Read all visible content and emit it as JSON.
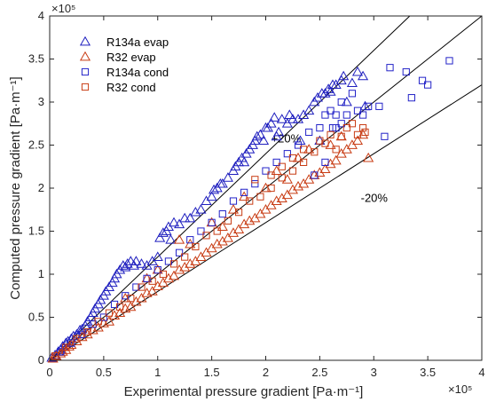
{
  "chart_data": {
    "type": "scatter",
    "xlabel": "Experimental pressure gradient [Pa·m⁻¹]",
    "ylabel": "Computed pressure gradient [Pa·m⁻¹]",
    "x_multiplier": "×10⁵",
    "y_multiplier": "×10⁵",
    "xlim": [
      0,
      4
    ],
    "ylim": [
      0,
      4
    ],
    "xticks": [
      "0",
      "0.5",
      "1",
      "1.5",
      "2",
      "2.5",
      "3",
      "3.5",
      "4"
    ],
    "yticks": [
      "0",
      "0.5",
      "1",
      "1.5",
      "2",
      "2.5",
      "3",
      "3.5",
      "4"
    ],
    "grid": false,
    "legend_position": "top-left",
    "reference_lines": [
      {
        "label": "+20%",
        "slope": 1.2
      },
      {
        "label": "",
        "slope": 1.0
      },
      {
        "label": "-20%",
        "slope": 0.8
      }
    ],
    "series": [
      {
        "name": "R134a evap",
        "marker": "triangle",
        "color": "#1f1fbf",
        "points": [
          [
            0.02,
            0.03
          ],
          [
            0.05,
            0.06
          ],
          [
            0.08,
            0.1
          ],
          [
            0.1,
            0.12
          ],
          [
            0.12,
            0.16
          ],
          [
            0.15,
            0.2
          ],
          [
            0.17,
            0.22
          ],
          [
            0.2,
            0.25
          ],
          [
            0.22,
            0.28
          ],
          [
            0.25,
            0.3
          ],
          [
            0.28,
            0.35
          ],
          [
            0.3,
            0.36
          ],
          [
            0.33,
            0.4
          ],
          [
            0.35,
            0.45
          ],
          [
            0.38,
            0.5
          ],
          [
            0.4,
            0.55
          ],
          [
            0.42,
            0.6
          ],
          [
            0.45,
            0.65
          ],
          [
            0.47,
            0.7
          ],
          [
            0.5,
            0.75
          ],
          [
            0.52,
            0.8
          ],
          [
            0.55,
            0.85
          ],
          [
            0.58,
            0.9
          ],
          [
            0.6,
            0.95
          ],
          [
            0.62,
            1.0
          ],
          [
            0.65,
            1.05
          ],
          [
            0.68,
            1.1
          ],
          [
            0.7,
            1.08
          ],
          [
            0.72,
            1.12
          ],
          [
            0.75,
            1.15
          ],
          [
            0.78,
            1.1
          ],
          [
            0.8,
            1.15
          ],
          [
            0.85,
            1.12
          ],
          [
            0.9,
            1.1
          ],
          [
            0.95,
            1.15
          ],
          [
            1.0,
            1.2
          ],
          [
            1.02,
            1.42
          ],
          [
            1.05,
            1.48
          ],
          [
            1.08,
            1.5
          ],
          [
            1.1,
            1.55
          ],
          [
            1.12,
            1.4
          ],
          [
            1.15,
            1.6
          ],
          [
            1.2,
            1.58
          ],
          [
            1.25,
            1.65
          ],
          [
            1.3,
            1.65
          ],
          [
            1.35,
            1.72
          ],
          [
            1.4,
            1.75
          ],
          [
            1.45,
            1.85
          ],
          [
            1.5,
            1.9
          ],
          [
            1.52,
            1.98
          ],
          [
            1.55,
            2.0
          ],
          [
            1.58,
            2.05
          ],
          [
            1.6,
            2.05
          ],
          [
            1.65,
            2.12
          ],
          [
            1.7,
            2.2
          ],
          [
            1.72,
            2.25
          ],
          [
            1.75,
            2.3
          ],
          [
            1.78,
            2.35
          ],
          [
            1.8,
            2.3
          ],
          [
            1.82,
            2.4
          ],
          [
            1.85,
            2.45
          ],
          [
            1.88,
            2.5
          ],
          [
            1.9,
            2.55
          ],
          [
            1.92,
            2.6
          ],
          [
            1.95,
            2.62
          ],
          [
            1.98,
            2.55
          ],
          [
            2.0,
            2.7
          ],
          [
            2.02,
            2.7
          ],
          [
            2.05,
            2.75
          ],
          [
            2.08,
            2.82
          ],
          [
            2.1,
            2.6
          ],
          [
            2.12,
            2.65
          ],
          [
            2.15,
            2.8
          ],
          [
            2.2,
            2.75
          ],
          [
            2.22,
            2.85
          ],
          [
            2.25,
            2.8
          ],
          [
            2.3,
            2.8
          ],
          [
            2.32,
            2.55
          ],
          [
            2.35,
            2.85
          ],
          [
            2.4,
            2.9
          ],
          [
            2.45,
            3.0
          ],
          [
            2.48,
            3.05
          ],
          [
            2.5,
            2.55
          ],
          [
            2.52,
            3.1
          ],
          [
            2.55,
            3.1
          ],
          [
            2.58,
            3.15
          ],
          [
            2.6,
            3.12
          ],
          [
            2.62,
            3.2
          ],
          [
            2.65,
            3.2
          ],
          [
            2.7,
            3.25
          ],
          [
            2.72,
            3.3
          ],
          [
            2.75,
            3.0
          ],
          [
            2.8,
            3.22
          ],
          [
            2.85,
            3.35
          ],
          [
            2.9,
            3.3
          ],
          [
            2.92,
            2.95
          ]
        ]
      },
      {
        "name": "R32 evap",
        "marker": "triangle",
        "color": "#c83c14",
        "points": [
          [
            0.03,
            0.02
          ],
          [
            0.06,
            0.05
          ],
          [
            0.1,
            0.08
          ],
          [
            0.12,
            0.1
          ],
          [
            0.15,
            0.12
          ],
          [
            0.18,
            0.16
          ],
          [
            0.2,
            0.18
          ],
          [
            0.25,
            0.22
          ],
          [
            0.3,
            0.27
          ],
          [
            0.35,
            0.3
          ],
          [
            0.4,
            0.35
          ],
          [
            0.45,
            0.38
          ],
          [
            0.5,
            0.43
          ],
          [
            0.55,
            0.45
          ],
          [
            0.6,
            0.52
          ],
          [
            0.65,
            0.55
          ],
          [
            0.7,
            0.6
          ],
          [
            0.75,
            0.62
          ],
          [
            0.8,
            0.68
          ],
          [
            0.85,
            0.72
          ],
          [
            0.9,
            0.78
          ],
          [
            0.95,
            0.8
          ],
          [
            1.0,
            0.86
          ],
          [
            1.05,
            0.9
          ],
          [
            1.1,
            0.95
          ],
          [
            1.15,
            0.98
          ],
          [
            1.2,
            1.05
          ],
          [
            1.25,
            1.08
          ],
          [
            1.3,
            1.12
          ],
          [
            1.35,
            1.15
          ],
          [
            1.4,
            1.2
          ],
          [
            1.45,
            1.25
          ],
          [
            1.5,
            1.3
          ],
          [
            1.55,
            1.35
          ],
          [
            1.6,
            1.38
          ],
          [
            1.65,
            1.42
          ],
          [
            1.7,
            1.48
          ],
          [
            1.75,
            1.52
          ],
          [
            1.8,
            1.58
          ],
          [
            1.85,
            1.62
          ],
          [
            1.9,
            1.65
          ],
          [
            1.95,
            1.7
          ],
          [
            2.0,
            1.75
          ],
          [
            2.05,
            1.8
          ],
          [
            2.1,
            1.85
          ],
          [
            2.15,
            1.88
          ],
          [
            2.2,
            1.92
          ],
          [
            2.25,
            1.98
          ],
          [
            2.3,
            2.02
          ],
          [
            2.35,
            2.05
          ],
          [
            2.4,
            2.1
          ],
          [
            2.45,
            2.15
          ],
          [
            2.5,
            2.18
          ],
          [
            2.55,
            2.22
          ],
          [
            2.6,
            2.28
          ],
          [
            2.65,
            2.32
          ],
          [
            2.7,
            2.4
          ],
          [
            2.75,
            2.45
          ],
          [
            2.8,
            2.5
          ],
          [
            2.85,
            2.55
          ],
          [
            2.9,
            2.62
          ],
          [
            2.95,
            2.35
          ],
          [
            1.2,
            1.4
          ],
          [
            1.5,
            1.6
          ],
          [
            1.8,
            1.9
          ],
          [
            2.1,
            2.2
          ],
          [
            2.4,
            2.45
          ],
          [
            0.7,
            0.72
          ],
          [
            0.9,
            0.95
          ],
          [
            1.6,
            1.55
          ],
          [
            2.2,
            2.1
          ],
          [
            2.6,
            2.5
          ],
          [
            1.0,
            1.05
          ],
          [
            1.3,
            1.35
          ],
          [
            1.7,
            1.75
          ],
          [
            2.0,
            2.0
          ],
          [
            2.3,
            2.35
          ],
          [
            2.7,
            2.6
          ]
        ]
      },
      {
        "name": "R134a cond",
        "marker": "square",
        "color": "#2323c8",
        "points": [
          [
            0.1,
            0.1
          ],
          [
            0.2,
            0.2
          ],
          [
            0.3,
            0.3
          ],
          [
            0.4,
            0.42
          ],
          [
            0.5,
            0.5
          ],
          [
            0.6,
            0.65
          ],
          [
            0.7,
            0.75
          ],
          [
            0.8,
            0.85
          ],
          [
            0.9,
            0.95
          ],
          [
            1.0,
            1.05
          ],
          [
            1.1,
            1.15
          ],
          [
            1.2,
            1.25
          ],
          [
            1.3,
            1.4
          ],
          [
            1.4,
            1.5
          ],
          [
            1.5,
            1.6
          ],
          [
            1.6,
            1.7
          ],
          [
            1.7,
            1.85
          ],
          [
            1.8,
            1.95
          ],
          [
            1.9,
            2.05
          ],
          [
            2.0,
            2.2
          ],
          [
            2.1,
            2.3
          ],
          [
            2.2,
            2.4
          ],
          [
            2.3,
            2.5
          ],
          [
            2.4,
            2.65
          ],
          [
            2.5,
            2.7
          ],
          [
            2.55,
            2.85
          ],
          [
            2.6,
            2.9
          ],
          [
            2.62,
            2.7
          ],
          [
            2.65,
            2.7
          ],
          [
            2.7,
            3.0
          ],
          [
            2.75,
            2.85
          ],
          [
            2.8,
            3.1
          ],
          [
            2.85,
            2.9
          ],
          [
            2.9,
            2.85
          ],
          [
            2.95,
            2.95
          ],
          [
            3.05,
            2.95
          ],
          [
            3.1,
            2.6
          ],
          [
            3.15,
            3.4
          ],
          [
            3.3,
            3.35
          ],
          [
            3.35,
            3.05
          ],
          [
            3.45,
            3.25
          ],
          [
            3.5,
            3.2
          ],
          [
            3.7,
            3.48
          ],
          [
            2.45,
            2.15
          ],
          [
            2.55,
            2.3
          ],
          [
            2.65,
            2.85
          ],
          [
            2.7,
            2.75
          ]
        ]
      },
      {
        "name": "R32 cond",
        "marker": "square",
        "color": "#c83c14",
        "points": [
          [
            0.05,
            0.05
          ],
          [
            0.15,
            0.15
          ],
          [
            0.25,
            0.25
          ],
          [
            0.35,
            0.33
          ],
          [
            0.45,
            0.45
          ],
          [
            0.55,
            0.55
          ],
          [
            0.65,
            0.62
          ],
          [
            0.75,
            0.72
          ],
          [
            0.85,
            0.85
          ],
          [
            0.95,
            0.92
          ],
          [
            1.05,
            1.0
          ],
          [
            1.15,
            1.12
          ],
          [
            1.25,
            1.2
          ],
          [
            1.35,
            1.32
          ],
          [
            1.45,
            1.45
          ],
          [
            1.55,
            1.5
          ],
          [
            1.65,
            1.62
          ],
          [
            1.75,
            1.72
          ],
          [
            1.85,
            1.85
          ],
          [
            1.95,
            1.9
          ],
          [
            2.05,
            2.0
          ],
          [
            2.15,
            2.12
          ],
          [
            2.25,
            2.2
          ],
          [
            2.35,
            2.3
          ],
          [
            2.45,
            2.42
          ],
          [
            2.55,
            2.52
          ],
          [
            2.6,
            2.62
          ],
          [
            2.65,
            2.45
          ],
          [
            2.75,
            2.7
          ],
          [
            2.8,
            2.75
          ],
          [
            2.85,
            2.62
          ],
          [
            2.9,
            2.7
          ],
          [
            2.92,
            2.65
          ],
          [
            2.05,
            2.15
          ],
          [
            2.15,
            2.25
          ],
          [
            2.25,
            2.35
          ],
          [
            2.35,
            2.45
          ],
          [
            1.9,
            2.1
          ],
          [
            2.5,
            2.55
          ],
          [
            2.7,
            2.6
          ]
        ]
      }
    ]
  }
}
